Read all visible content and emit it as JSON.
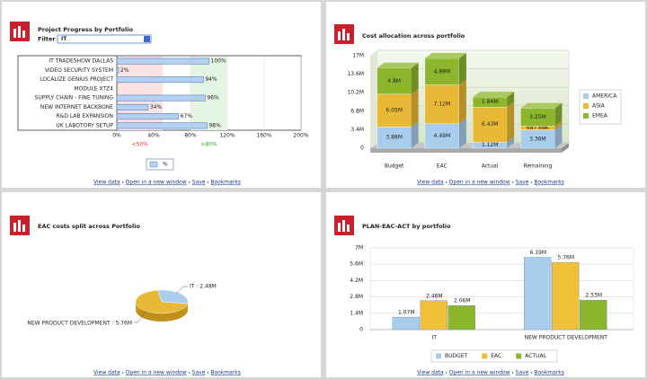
{
  "chart_data": [
    {
      "type": "hbar",
      "title": "Project Progress by Portfolio",
      "filter_label": "Filter",
      "filter_value": "IT",
      "categories": [
        "IT TRADESHOW DALLAS",
        "VIDEO SECURITY SYSTEM",
        "LOCALIZE GENIUS PROJECT",
        "MODULE XTZ4",
        "SUPPLY CHAIN - FINE TUNING",
        "NEW INTERNET BACKBONE",
        "R&D LAB EXPANSION",
        "UK LABOTORY SETUP"
      ],
      "series": [
        {
          "name": "%",
          "color": "#b3d0f0",
          "values": [
            100,
            2,
            94,
            null,
            96,
            34,
            67,
            98
          ],
          "value_labels": [
            "100%",
            "2%",
            "94%",
            null,
            "96%",
            "34%",
            "67%",
            "98%"
          ]
        }
      ],
      "xlim": [
        0,
        200
      ],
      "xticks": [
        {
          "value": 0,
          "label": "0%"
        },
        {
          "value": 40,
          "label": "40%"
        },
        {
          "value": 80,
          "label": "80%"
        },
        {
          "value": 120,
          "label": "120%"
        },
        {
          "value": 160,
          "label": "160%"
        },
        {
          "value": 200,
          "label": "200%"
        }
      ],
      "bands": [
        {
          "label": "<50%",
          "from": 0,
          "to": 50,
          "color": "#fbe3e3",
          "label_color": "#e03030"
        },
        {
          "label": ">80%",
          "from": 80,
          "to": 120,
          "color": "#e4f5e4",
          "label_color": "#2fb02f"
        }
      ],
      "links": [
        "View data",
        "Open in a new window",
        "Save",
        "Bookmarks"
      ]
    },
    {
      "type": "stacked",
      "title": "Cost allocation across portfolio",
      "categories": [
        "Budget",
        "EAC",
        "Actual",
        "Remaining"
      ],
      "series": [
        {
          "name": "AMERICA",
          "color": "#a9cdec",
          "values": [
            3880000,
            4490000,
            1120000,
            3360000
          ],
          "value_labels": [
            "3.88M",
            "4.49M",
            "1.12M",
            "3.36M"
          ]
        },
        {
          "name": "ASIA",
          "color": "#e9b935",
          "values": [
            6050000,
            7120000,
            6430000,
            687680
          ],
          "value_labels": [
            "6.05M",
            "7.12M",
            "6.43M",
            "687.68K"
          ]
        },
        {
          "name": "EMEA",
          "color": "#8cb62c",
          "values": [
            4800000,
            4890000,
            1840000,
            3250000
          ],
          "value_labels": [
            "4.8M",
            "4.89M",
            "1.84M",
            "3.25M"
          ]
        }
      ],
      "ylim": [
        0,
        17000000
      ],
      "yticks": [
        0,
        {
          "value": 3400000,
          "label": "3.4M"
        },
        {
          "value": 6800000,
          "label": "6.8M"
        },
        {
          "value": 10200000,
          "label": "10.2M"
        },
        {
          "value": 13600000,
          "label": "13.6M"
        },
        {
          "value": 17000000,
          "label": "17M"
        }
      ],
      "links": [
        "View data",
        "Open in a new window",
        "Save",
        "Bookmarks"
      ]
    },
    {
      "type": "pie",
      "title": "EAC costs split across Portfolio",
      "values": [
        2480000,
        5760000
      ],
      "value_labels": [
        "IT : 2.48M",
        "NEW PRODUCT DEVELOPMENT : 5.76M"
      ],
      "colors": [
        "#a9cdec",
        "#e9b935"
      ],
      "links": [
        "View data",
        "Open in a new window",
        "Save",
        "Bookmarks"
      ]
    },
    {
      "type": "bar",
      "title": "PLAN-EAC-ACT by portfolio",
      "categories": [
        "IT",
        "NEW PRODUCT DEVELOPMENT"
      ],
      "series": [
        {
          "name": "BUDGET",
          "color": "#a9cdec",
          "values": [
            1070000,
            6190000
          ],
          "value_labels": [
            "1.07M",
            "6.19M"
          ]
        },
        {
          "name": "EAC",
          "color": "#f0c03a",
          "values": [
            2480000,
            5760000
          ],
          "value_labels": [
            "2.48M",
            "5.76M"
          ]
        },
        {
          "name": "ACTUAL",
          "color": "#8cb62c",
          "values": [
            2060000,
            2530000
          ],
          "value_labels": [
            "2.06M",
            "2.53M"
          ]
        }
      ],
      "ylim": [
        0,
        7000000
      ],
      "yticks": [
        0,
        {
          "value": 1400000,
          "label": "1.4M"
        },
        {
          "value": 2800000,
          "label": "2.8M"
        },
        {
          "value": 4200000,
          "label": "4.2M"
        },
        {
          "value": 5600000,
          "label": "5.6M"
        },
        {
          "value": 7000000,
          "label": "7M"
        }
      ],
      "links": [
        "View data",
        "Open in a new window",
        "Save",
        "Bookmarks"
      ]
    }
  ]
}
